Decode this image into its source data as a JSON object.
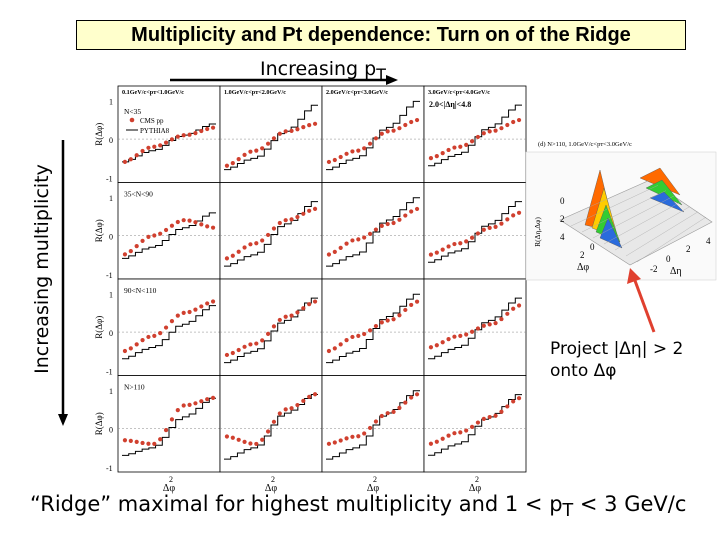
{
  "title": "Multiplicity and Pt dependence: Turn on of the Ridge",
  "top_axis_label": "Increasing p",
  "top_axis_sub": "T",
  "side_axis_label": "Increasing multiplicity",
  "bottom_text": "“Ridge”  maximal for highest multiplicity and 1 < p",
  "bottom_text_sub": "T",
  "bottom_text_end": " < 3 GeV/c",
  "project_line1": "Project |Δη| > 2",
  "project_line2": "onto Δφ",
  "colors": {
    "cms": "#d0402f",
    "pythia": "#000000",
    "arrow": "#e0402f",
    "title_bg": "#ffffcc"
  },
  "chart_data": {
    "type": "line",
    "grid_rows": 4,
    "grid_cols": 4,
    "ylabel": "R(Δφ)",
    "xlabel": "Δφ",
    "x_ticks": [
      "0",
      "2"
    ],
    "ylim": [
      -1,
      1
    ],
    "y_ticks": [
      "1",
      "0",
      "-1"
    ],
    "col_labels": [
      "0.1GeV/c<pᴛ<1.0GeV/c",
      "1.0GeV/c<pᴛ<2.0GeV/c",
      "2.0GeV/c<pᴛ<3.0GeV/c",
      "3.0GeV/c<pᴛ<4.0GeV/c"
    ],
    "row_labels": [
      "N<35",
      "35<N<90",
      "90<N<110",
      "N>110"
    ],
    "legend": [
      "CMS pp",
      "PYTHIA8"
    ],
    "eta_cut": "2.0<|Δη|<4.8",
    "series": [
      {
        "name": "CMS pp",
        "rows": [
          [
            [
              -0.6,
              -0.2,
              0.1,
              0.3
            ],
            [
              -0.7,
              -0.3,
              0.2,
              0.4
            ],
            [
              -0.6,
              -0.3,
              0.2,
              0.5
            ],
            [
              -0.5,
              -0.2,
              0.2,
              0.5
            ]
          ],
          [
            [
              -0.5,
              0.0,
              0.4,
              0.2
            ],
            [
              -0.6,
              -0.2,
              0.4,
              0.7
            ],
            [
              -0.5,
              -0.1,
              0.3,
              0.7
            ],
            [
              -0.5,
              -0.2,
              0.2,
              0.6
            ]
          ],
          [
            [
              -0.5,
              -0.1,
              0.5,
              0.8
            ],
            [
              -0.6,
              -0.3,
              0.4,
              0.8
            ],
            [
              -0.5,
              -0.1,
              0.3,
              0.8
            ],
            [
              -0.4,
              -0.1,
              0.2,
              0.7
            ]
          ],
          [
            [
              -0.3,
              -0.4,
              0.6,
              0.8
            ],
            [
              -0.2,
              -0.4,
              0.5,
              0.9
            ],
            [
              -0.4,
              -0.2,
              0.4,
              0.9
            ],
            [
              -0.4,
              -0.1,
              0.3,
              0.8
            ]
          ]
        ]
      },
      {
        "name": "PYTHIA8",
        "rows": [
          [
            [
              -0.6,
              -0.3,
              0.1,
              0.4
            ],
            [
              -0.8,
              -0.5,
              0.2,
              0.9
            ],
            [
              -0.8,
              -0.5,
              0.3,
              1.0
            ],
            [
              -0.7,
              -0.4,
              0.3,
              0.9
            ]
          ],
          [
            [
              -0.6,
              -0.3,
              0.2,
              0.6
            ],
            [
              -0.8,
              -0.5,
              0.3,
              0.9
            ],
            [
              -0.8,
              -0.5,
              0.4,
              1.0
            ],
            [
              -0.7,
              -0.4,
              0.3,
              0.9
            ]
          ],
          [
            [
              -0.7,
              -0.4,
              0.2,
              0.7
            ],
            [
              -0.8,
              -0.5,
              0.3,
              0.9
            ],
            [
              -0.8,
              -0.5,
              0.4,
              1.0
            ],
            [
              -0.7,
              -0.4,
              0.3,
              0.9
            ]
          ],
          [
            [
              -0.7,
              -0.5,
              0.3,
              0.8
            ],
            [
              -0.8,
              -0.5,
              0.4,
              0.9
            ],
            [
              -0.8,
              -0.5,
              0.4,
              1.0
            ],
            [
              -0.7,
              -0.4,
              0.3,
              0.9
            ]
          ]
        ]
      }
    ],
    "surface_plot": {
      "title": "(d) N>110, 1.0GeV/c<pᴛ<3.0GeV/c",
      "zlabel": "R(Δη,Δφ)",
      "z_ticks": [
        "0",
        "2",
        "4"
      ],
      "x_ticks": [
        "0",
        "2"
      ],
      "y_ticks": [
        "-2",
        "0",
        "2",
        "4"
      ],
      "xlabel": "Δφ",
      "ylabel": "Δη"
    }
  }
}
